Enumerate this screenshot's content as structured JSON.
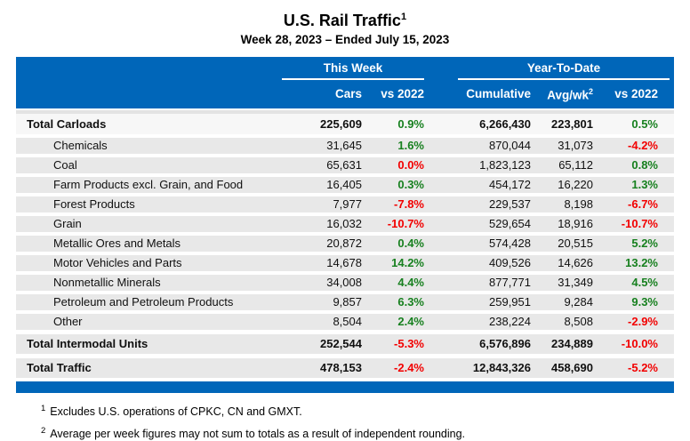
{
  "title": {
    "text": "U.S. Rail Traffic",
    "sup": "1"
  },
  "subtitle": "Week 28, 2023 – Ended July 15, 2023",
  "table": {
    "header": {
      "group_this_week": "This Week",
      "group_ytd": "Year-To-Date",
      "columns": {
        "cars": "Cars",
        "vs2022_week": "vs 2022",
        "cumulative": "Cumulative",
        "avg_wk": {
          "text": "Avg/wk",
          "sup": "2"
        },
        "vs2022_ytd": "vs 2022"
      }
    },
    "rows": [
      {
        "label": "Total Carloads",
        "style": "total",
        "variant": "first",
        "indent": false,
        "cars": "225,609",
        "vs_week": {
          "text": "0.9%",
          "color": "green"
        },
        "cumulative": "6,266,430",
        "avg_wk": "223,801",
        "vs_ytd": {
          "text": "0.5%",
          "color": "green"
        }
      },
      {
        "label": "Chemicals",
        "style": "commodity",
        "indent": true,
        "cars": "31,645",
        "vs_week": {
          "text": "1.6%",
          "color": "green"
        },
        "cumulative": "870,044",
        "avg_wk": "31,073",
        "vs_ytd": {
          "text": "-4.2%",
          "color": "red"
        }
      },
      {
        "label": "Coal",
        "style": "commodity",
        "indent": true,
        "cars": "65,631",
        "vs_week": {
          "text": "0.0%",
          "color": "red"
        },
        "cumulative": "1,823,123",
        "avg_wk": "65,112",
        "vs_ytd": {
          "text": "0.8%",
          "color": "green"
        }
      },
      {
        "label": "Farm Products excl. Grain, and Food",
        "style": "commodity",
        "indent": true,
        "cars": "16,405",
        "vs_week": {
          "text": "0.3%",
          "color": "green"
        },
        "cumulative": "454,172",
        "avg_wk": "16,220",
        "vs_ytd": {
          "text": "1.3%",
          "color": "green"
        }
      },
      {
        "label": "Forest Products",
        "style": "commodity",
        "indent": true,
        "cars": "7,977",
        "vs_week": {
          "text": "-7.8%",
          "color": "red"
        },
        "cumulative": "229,537",
        "avg_wk": "8,198",
        "vs_ytd": {
          "text": "-6.7%",
          "color": "red"
        }
      },
      {
        "label": "Grain",
        "style": "commodity",
        "indent": true,
        "cars": "16,032",
        "vs_week": {
          "text": "-10.7%",
          "color": "red"
        },
        "cumulative": "529,654",
        "avg_wk": "18,916",
        "vs_ytd": {
          "text": "-10.7%",
          "color": "red"
        }
      },
      {
        "label": "Metallic Ores and Metals",
        "style": "commodity",
        "indent": true,
        "cars": "20,872",
        "vs_week": {
          "text": "0.4%",
          "color": "green"
        },
        "cumulative": "574,428",
        "avg_wk": "20,515",
        "vs_ytd": {
          "text": "5.2%",
          "color": "green"
        }
      },
      {
        "label": "Motor Vehicles and Parts",
        "style": "commodity",
        "indent": true,
        "cars": "14,678",
        "vs_week": {
          "text": "14.2%",
          "color": "green"
        },
        "cumulative": "409,526",
        "avg_wk": "14,626",
        "vs_ytd": {
          "text": "13.2%",
          "color": "green"
        }
      },
      {
        "label": "Nonmetallic Minerals",
        "style": "commodity",
        "indent": true,
        "cars": "34,008",
        "vs_week": {
          "text": "4.4%",
          "color": "green"
        },
        "cumulative": "877,771",
        "avg_wk": "31,349",
        "vs_ytd": {
          "text": "4.5%",
          "color": "green"
        }
      },
      {
        "label": "Petroleum and Petroleum Products",
        "style": "commodity",
        "indent": true,
        "cars": "9,857",
        "vs_week": {
          "text": "6.3%",
          "color": "green"
        },
        "cumulative": "259,951",
        "avg_wk": "9,284",
        "vs_ytd": {
          "text": "9.3%",
          "color": "green"
        }
      },
      {
        "label": "Other",
        "style": "commodity",
        "indent": true,
        "cars": "8,504",
        "vs_week": {
          "text": "2.4%",
          "color": "green"
        },
        "cumulative": "238,224",
        "avg_wk": "8,508",
        "vs_ytd": {
          "text": "-2.9%",
          "color": "red"
        }
      },
      {
        "label": "Total Intermodal Units",
        "style": "total",
        "indent": false,
        "cars": "252,544",
        "vs_week": {
          "text": "-5.3%",
          "color": "red"
        },
        "cumulative": "6,576,896",
        "avg_wk": "234,889",
        "vs_ytd": {
          "text": "-10.0%",
          "color": "red"
        }
      },
      {
        "label": "Total Traffic",
        "style": "total",
        "indent": false,
        "cars": "478,153",
        "vs_week": {
          "text": "-2.4%",
          "color": "red"
        },
        "cumulative": "12,843,326",
        "avg_wk": "458,690",
        "vs_ytd": {
          "text": "-5.2%",
          "color": "red"
        }
      }
    ]
  },
  "footnotes": [
    {
      "sup": "1",
      "text": "Excludes U.S. operations of CPKC, CN and GMXT."
    },
    {
      "sup": "2",
      "text": "Average per week figures may not sum to totals as a result of independent rounding."
    }
  ],
  "colors": {
    "header_blue": "#0066B9",
    "row_gray": "#E8E8E8",
    "total_carloads_row_bg": "#F7F7F7",
    "positive_green": "#17801F",
    "negative_red": "#F20000"
  }
}
